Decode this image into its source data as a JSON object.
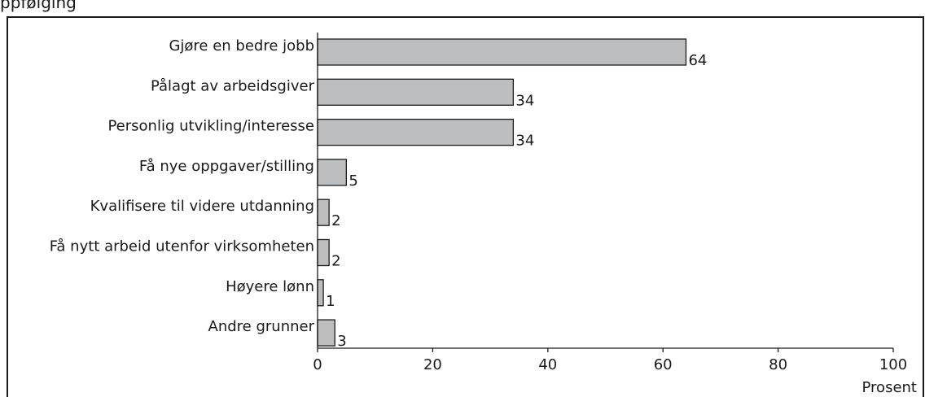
{
  "chart_data": {
    "type": "bar",
    "orientation": "horizontal",
    "title": "ppfølging",
    "categories": [
      "Gjøre en bedre jobb",
      "Pålagt av arbeidsgiver",
      "Personlig utvikling/interesse",
      "Få nye oppgaver/stilling",
      "Kvalifisere til videre utdanning",
      "Få nytt arbeid utenfor virksomheten",
      "Høyere lønn",
      "Andre grunner"
    ],
    "values": [
      64,
      34,
      34,
      5,
      2,
      2,
      1,
      3
    ],
    "xlabel": "Prosent",
    "ylabel": "",
    "xlim": [
      0,
      100
    ],
    "xticks": [
      0,
      20,
      40,
      60,
      80,
      100
    ],
    "grid": false,
    "legend": "none",
    "bar_color": "#bcbec0",
    "bar_outline": "#1a1a1a"
  }
}
